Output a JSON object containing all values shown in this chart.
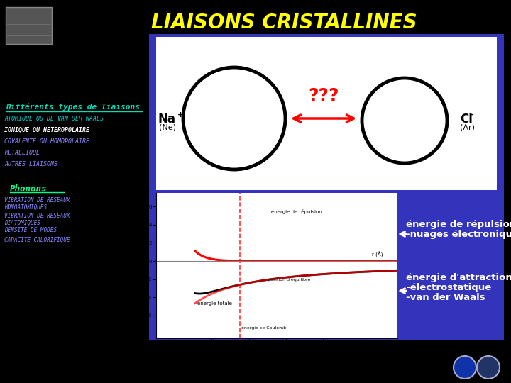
{
  "title": "LIAISONS CRISTALLINES",
  "title_color": "#FFFF00",
  "bg_color": "#000000",
  "blue_panel_color": "#3333BB",
  "sidebar_items": {
    "section1_title": "Différents types de liaisons",
    "section1_title_color": "#00DDBB",
    "items1": [
      "ATOMIQUE OU DE VAN DER WAALS",
      "IONIQUE OU HETEROPOLAIRE",
      "COVALENTE OU HOMOPOLAIRE",
      "METALLIQUE",
      "AUTRES LIAISONS"
    ],
    "items1_colors": [
      "#00CCCC",
      "#FFFFFF",
      "#8888FF",
      "#8888FF",
      "#8888FF"
    ],
    "section2_title": "Phonons",
    "section2_title_color": "#00FF88",
    "items2": [
      "VIBRATION DE RESEAUX\nMONOATOMIQUES",
      "VIBRATION DE RESEAUX\nDIATOMIQUES",
      "DENSITE DE MODES",
      "CAPACITE CALORIFIQUE"
    ],
    "items2_color": "#8888FF"
  },
  "annotations": {
    "repulsion_title": "énergie de répulsion :",
    "repulsion_sub": "-nuages électroniques",
    "attraction_title": "énergie d'attraction :",
    "attraction_sub1": "-électrostatique",
    "attraction_sub2": "-van der Waals",
    "annotation_color": "#FFFFFF"
  }
}
